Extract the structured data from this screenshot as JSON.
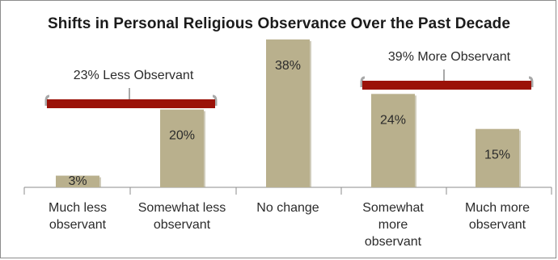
{
  "chart_data": {
    "type": "bar",
    "title": "Shifts in Personal Religious Observance Over the Past Decade",
    "categories": [
      [
        "Much less",
        "observant"
      ],
      [
        "Somewhat less",
        "observant"
      ],
      [
        "No change"
      ],
      [
        "Somewhat",
        "more",
        "observant"
      ],
      [
        "Much more",
        "observant"
      ]
    ],
    "values": [
      3,
      20,
      38,
      24,
      15
    ],
    "value_labels": [
      "3%",
      "20%",
      "38%",
      "24%",
      "15%"
    ],
    "ylim": [
      0,
      40
    ],
    "grid": false,
    "groups": [
      {
        "label": "23% Less Observant",
        "categories": [
          0,
          1
        ]
      },
      {
        "label": "39% More Observant",
        "categories": [
          3,
          4
        ]
      }
    ],
    "colors": {
      "bar": "#b9b08d",
      "bar_shadow": "#a9a284",
      "bracket": "#9b1208",
      "bracket_edge": "#a8a8a8",
      "axis": "#8c8c8c"
    }
  }
}
